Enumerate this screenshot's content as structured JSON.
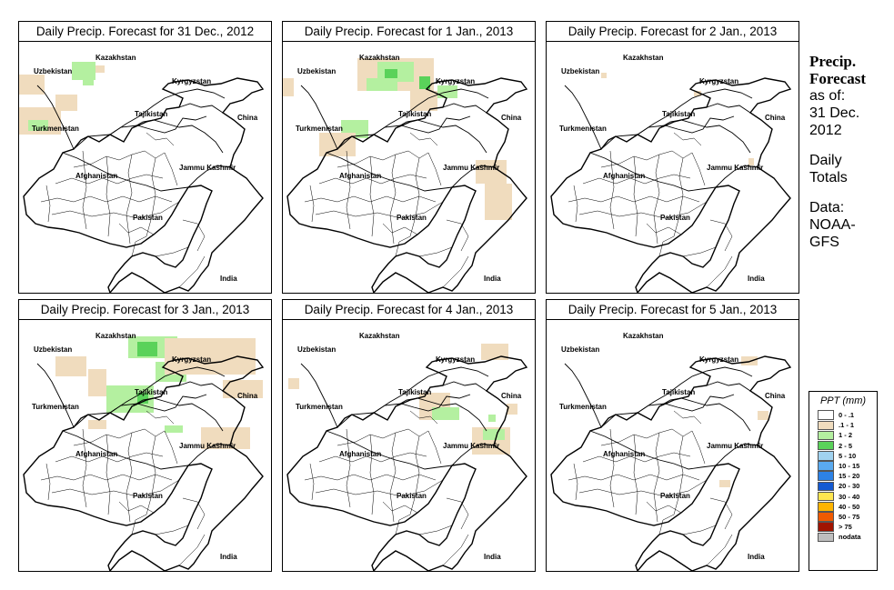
{
  "panels": [
    {
      "title": "Daily Precip. Forecast for  31 Dec., 2012",
      "pattern": "p1"
    },
    {
      "title": "Daily Precip. Forecast for  1 Jan., 2013",
      "pattern": "p2"
    },
    {
      "title": "Daily Precip. Forecast for  2 Jan., 2013",
      "pattern": "p3"
    },
    {
      "title": "Daily Precip. Forecast for  3 Jan., 2013",
      "pattern": "p4"
    },
    {
      "title": "Daily Precip. Forecast for  4 Jan., 2013",
      "pattern": "p5"
    },
    {
      "title": "Daily Precip. Forecast for  5 Jan., 2013",
      "pattern": "p6"
    }
  ],
  "map_labels": {
    "kazakhstan": "Kazakhstan",
    "uzbekistan": "Uzbekistan",
    "kyrgyzstan": "Kyrgyzstan",
    "tajikistan": "Tajikistan",
    "china": "China",
    "turkmenistan": "Turkmenistan",
    "jammu_kashmir": "Jammu Kashmir",
    "afghanistan": "Afghanistan",
    "pakistan": "Pakistan",
    "india": "India"
  },
  "side": {
    "title_line1": "Precip.",
    "title_line2": "Forecast",
    "asof_line1": "as of:",
    "asof_line2": "31 Dec.",
    "asof_line3": "2012",
    "daily_line1": "Daily",
    "daily_line2": "Totals",
    "data_line1": "Data:",
    "data_line2": "NOAA-",
    "data_line3": "GFS"
  },
  "legend": {
    "title": "PPT (mm)",
    "items": [
      {
        "label": "0 - .1",
        "color": "#ffffff"
      },
      {
        "label": ".1 - 1",
        "color": "#f0dcbe"
      },
      {
        "label": "1 - 2",
        "color": "#b4f0a0"
      },
      {
        "label": "2 - 5",
        "color": "#5ad25a"
      },
      {
        "label": "5 - 10",
        "color": "#a0d2f0"
      },
      {
        "label": "10 - 15",
        "color": "#5aaaf0"
      },
      {
        "label": "15 - 20",
        "color": "#2d82e6"
      },
      {
        "label": "20 - 30",
        "color": "#145ad2"
      },
      {
        "label": "30 - 40",
        "color": "#ffe650"
      },
      {
        "label": "40 - 50",
        "color": "#ffb400"
      },
      {
        "label": "50 - 75",
        "color": "#f05a00"
      },
      {
        "label": "> 75",
        "color": "#a01400"
      },
      {
        "label": "nodata",
        "color": "#bebebe"
      }
    ]
  }
}
